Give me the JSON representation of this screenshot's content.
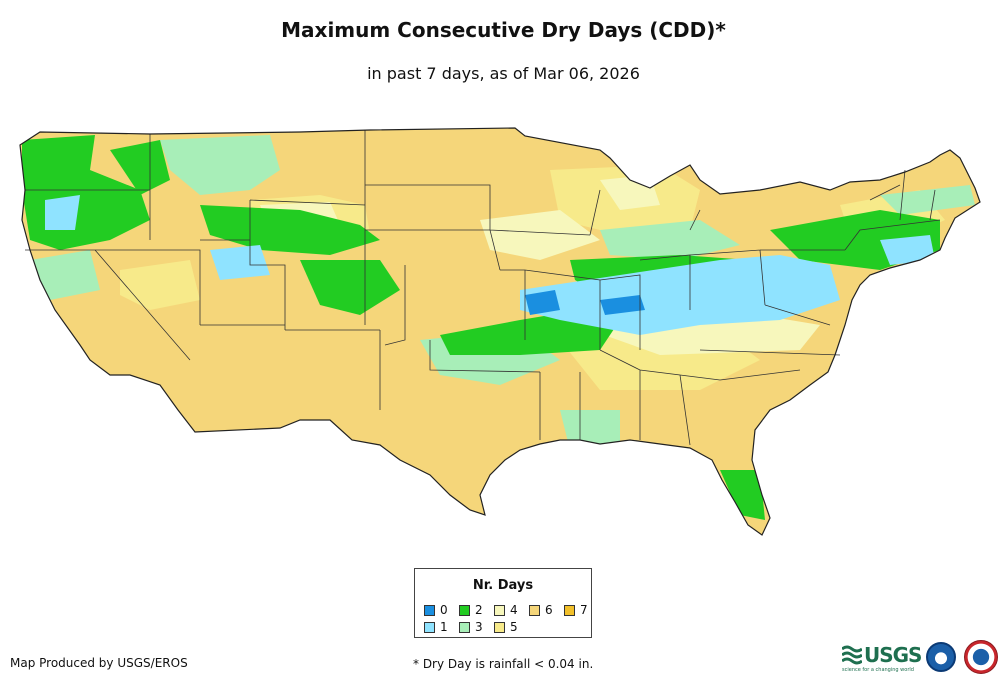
{
  "title": "Maximum Consecutive Dry Days (CDD)*",
  "subtitle": "in past 7 days, as of Mar 06, 2026",
  "legend": {
    "title": "Nr. Days",
    "items": [
      {
        "label": "0",
        "color": "#1a8fe0"
      },
      {
        "label": "2",
        "color": "#22cc22"
      },
      {
        "label": "4",
        "color": "#f7f7bc"
      },
      {
        "label": "6",
        "color": "#f5d67a"
      },
      {
        "label": "7",
        "color": "#f2c02a"
      },
      {
        "label": "1",
        "color": "#8fe3ff"
      },
      {
        "label": "3",
        "color": "#a8eeb8"
      },
      {
        "label": "5",
        "color": "#f7ea8a"
      }
    ]
  },
  "credit": "Map Produced by USGS/EROS",
  "footnote": "* Dry Day is rainfall < 0.04 in.",
  "logos": {
    "usgs": "USGS",
    "usgs_tagline": "science for a changing world",
    "noaa": "noaa-logo",
    "nws": "nws-logo"
  }
}
